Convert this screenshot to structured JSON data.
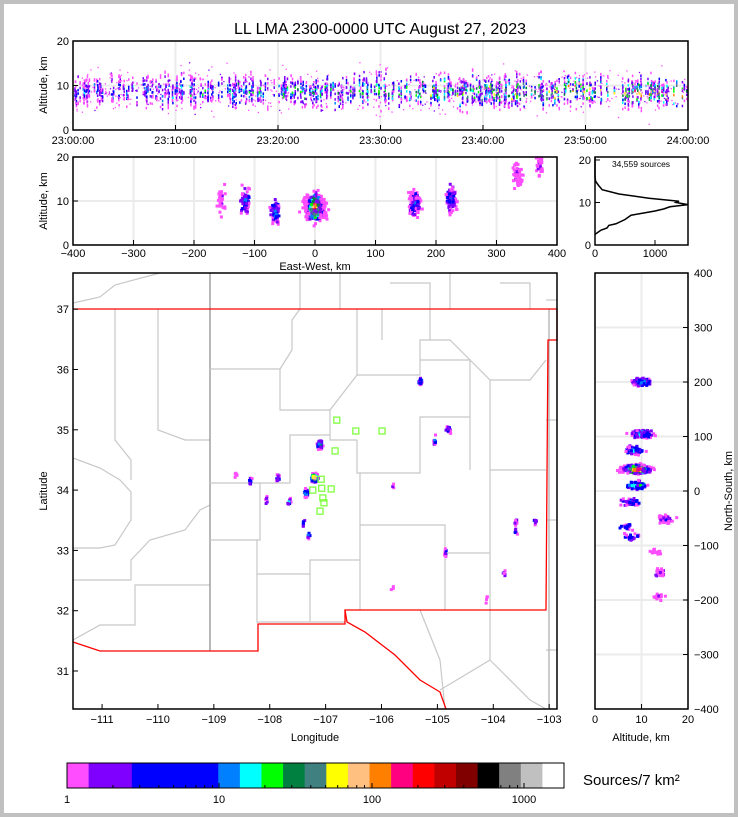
{
  "title": "LL LMA 2300-0000 UTC August 27, 2023",
  "palette": [
    "#ff4dff",
    "#7f00ff",
    "#0000ff",
    "#0000ff",
    "#0080ff",
    "#00ffff",
    "#00ff00",
    "#008040",
    "#408080",
    "#ffff00",
    "#ffc080",
    "#ff8000",
    "#ff0080",
    "#ff0000",
    "#c00000",
    "#800000",
    "#000000",
    "#808080",
    "#c0c0c0",
    "#ffffff"
  ],
  "chart_data": [
    {
      "id": "time-height",
      "type": "scatter",
      "ylabel": "Altitude, km",
      "xlim_minutes": [
        0,
        60
      ],
      "ylim": [
        0,
        20
      ],
      "xticks": [
        "23:00:00",
        "23:10:00",
        "23:20:00",
        "23:30:00",
        "23:40:00",
        "23:50:00",
        "24:00:00"
      ],
      "yticks": [
        "0",
        "10",
        "20"
      ],
      "grid": true,
      "mean_altitude_km": 9
    },
    {
      "id": "ew-height",
      "type": "scatter",
      "xlabel": "East-West, km",
      "ylabel": "Altitude, km",
      "xlim": [
        -400,
        400
      ],
      "ylim": [
        0,
        20
      ],
      "xticks": [
        "−400",
        "−300",
        "−200",
        "−100",
        "0",
        "100",
        "200",
        "300",
        "400"
      ],
      "yticks": [
        "0",
        "10",
        "20"
      ],
      "grid": true,
      "clusters": [
        {
          "x": -155,
          "y": 10,
          "n": 25,
          "intensity": 0.1
        },
        {
          "x": -115,
          "y": 10,
          "n": 80,
          "intensity": 0.35
        },
        {
          "x": -65,
          "y": 7.5,
          "n": 70,
          "intensity": 0.35
        },
        {
          "x": 0,
          "y": 8.5,
          "n": 500,
          "intensity": 1.0
        },
        {
          "x": 165,
          "y": 9.5,
          "n": 160,
          "intensity": 0.3
        },
        {
          "x": 225,
          "y": 10.5,
          "n": 120,
          "intensity": 0.3
        },
        {
          "x": 335,
          "y": 16,
          "n": 50,
          "intensity": 0.1
        },
        {
          "x": 370,
          "y": 18.5,
          "n": 30,
          "intensity": 0.1
        }
      ]
    },
    {
      "id": "altitude-histogram",
      "type": "line",
      "annotation": "34,559 sources",
      "xlim": [
        0,
        1550
      ],
      "ylim": [
        0,
        20.7
      ],
      "xticks": [
        "0",
        "1000"
      ],
      "yticks": [
        "0",
        "10",
        "20"
      ],
      "points": [
        [
          0,
          2.5
        ],
        [
          50,
          3
        ],
        [
          100,
          3.5
        ],
        [
          200,
          4
        ],
        [
          230,
          4.6
        ],
        [
          350,
          5
        ],
        [
          500,
          6
        ],
        [
          600,
          7
        ],
        [
          800,
          7.5
        ],
        [
          1000,
          8
        ],
        [
          1150,
          8.5
        ],
        [
          1250,
          9
        ],
        [
          1550,
          9.5
        ],
        [
          1350,
          10
        ],
        [
          1400,
          10.3
        ],
        [
          900,
          11
        ],
        [
          400,
          12
        ],
        [
          120,
          13
        ],
        [
          60,
          14
        ],
        [
          10,
          15
        ],
        [
          0,
          16
        ],
        [
          0,
          20.7
        ]
      ]
    },
    {
      "id": "plan-view",
      "type": "scatter",
      "xlabel": "Longitude",
      "ylabel": "Latitude",
      "xlim": [
        -111.52,
        -102.86
      ],
      "ylim": [
        30.37,
        37.6
      ],
      "xticks": [
        "−111",
        "−110",
        "−109",
        "−108",
        "−107",
        "−106",
        "−105",
        "−104",
        "−103"
      ],
      "yticks": [
        "31",
        "32",
        "33",
        "34",
        "35",
        "36",
        "37"
      ],
      "clusters": [
        {
          "x": -107.1,
          "y": 34.75,
          "n": 60,
          "intensity": 0.5
        },
        {
          "x": -107.2,
          "y": 34.2,
          "n": 150,
          "intensity": 0.9
        },
        {
          "x": -107.35,
          "y": 33.95,
          "n": 30,
          "intensity": 0.4
        },
        {
          "x": -108.35,
          "y": 34.15,
          "n": 12,
          "intensity": 0.3
        },
        {
          "x": -107.85,
          "y": 34.2,
          "n": 15,
          "intensity": 0.35
        },
        {
          "x": -108.6,
          "y": 34.25,
          "n": 6,
          "intensity": 0.1
        },
        {
          "x": -107.65,
          "y": 33.8,
          "n": 12,
          "intensity": 0.35
        },
        {
          "x": -108.05,
          "y": 33.85,
          "n": 6,
          "intensity": 0.2
        },
        {
          "x": -107.4,
          "y": 33.45,
          "n": 6,
          "intensity": 0.2
        },
        {
          "x": -107.3,
          "y": 33.25,
          "n": 8,
          "intensity": 0.3
        },
        {
          "x": -105.3,
          "y": 35.8,
          "n": 30,
          "intensity": 0.35
        },
        {
          "x": -104.8,
          "y": 35.0,
          "n": 25,
          "intensity": 0.3
        },
        {
          "x": -105.05,
          "y": 34.83,
          "n": 12,
          "intensity": 0.3
        },
        {
          "x": -104.85,
          "y": 32.95,
          "n": 8,
          "intensity": 0.25
        },
        {
          "x": -103.6,
          "y": 33.45,
          "n": 8,
          "intensity": 0.2
        },
        {
          "x": -103.25,
          "y": 33.5,
          "n": 8,
          "intensity": 0.2
        },
        {
          "x": -103.6,
          "y": 33.3,
          "n": 6,
          "intensity": 0.2
        },
        {
          "x": -103.8,
          "y": 32.6,
          "n": 6,
          "intensity": 0.2
        },
        {
          "x": -105.8,
          "y": 34.05,
          "n": 3,
          "intensity": 0.2
        },
        {
          "x": -105.8,
          "y": 32.4,
          "n": 3,
          "intensity": 0.2
        },
        {
          "x": -104.1,
          "y": 32.2,
          "n": 4,
          "intensity": 0.1
        }
      ],
      "stations": [
        [
          -106.8,
          35.16
        ],
        [
          -106.46,
          34.98
        ],
        [
          -105.99,
          34.98
        ],
        [
          -106.83,
          34.65
        ],
        [
          -107.08,
          34.18
        ],
        [
          -107.07,
          34.03
        ],
        [
          -107.23,
          34.0
        ],
        [
          -106.9,
          34.02
        ],
        [
          -107.05,
          33.87
        ],
        [
          -107.1,
          33.65
        ],
        [
          -107.03,
          33.79
        ]
      ],
      "station_color": "#80ff40",
      "boundary_color": "#ff0000"
    },
    {
      "id": "ns-height",
      "type": "scatter",
      "xlabel": "Altitude, km",
      "ylabel": "North-South, km",
      "xlim": [
        0,
        20
      ],
      "ylim": [
        -400,
        400
      ],
      "xticks": [
        "0",
        "10",
        "20"
      ],
      "yticks": [
        "−400",
        "−300",
        "−200",
        "−100",
        "0",
        "100",
        "200",
        "300",
        "400"
      ],
      "grid": true,
      "clusters": [
        {
          "x": 10,
          "y": 200,
          "n": 90,
          "intensity": 0.35
        },
        {
          "x": 10,
          "y": 105,
          "n": 120,
          "intensity": 0.45
        },
        {
          "x": 8.5,
          "y": 75,
          "n": 80,
          "intensity": 0.4
        },
        {
          "x": 9,
          "y": 40,
          "n": 300,
          "intensity": 1.0
        },
        {
          "x": 9,
          "y": 10,
          "n": 80,
          "intensity": 0.5
        },
        {
          "x": 7.5,
          "y": -20,
          "n": 40,
          "intensity": 0.35
        },
        {
          "x": 7,
          "y": -65,
          "n": 20,
          "intensity": 0.25
        },
        {
          "x": 8,
          "y": -85,
          "n": 20,
          "intensity": 0.35
        },
        {
          "x": 15.5,
          "y": -52,
          "n": 40,
          "intensity": 0.15
        },
        {
          "x": 13,
          "y": -110,
          "n": 15,
          "intensity": 0.1
        },
        {
          "x": 14,
          "y": -150,
          "n": 25,
          "intensity": 0.1
        },
        {
          "x": 14,
          "y": -195,
          "n": 15,
          "intensity": 0.1
        }
      ]
    }
  ],
  "colorbar": {
    "label": "Sources/7 km²",
    "ticks": [
      "1",
      "10",
      "100",
      "1000"
    ],
    "colors": [
      "#ff4dff",
      "#7f00ff",
      "#0000ff",
      "#0080ff",
      "#00ffff",
      "#00ff00",
      "#008040",
      "#408080",
      "#ffff00",
      "#ffc080",
      "#ff8000",
      "#ff0080",
      "#ff0000",
      "#c00000",
      "#800000",
      "#000000",
      "#808080",
      "#c0c0c0",
      "#ffffff"
    ],
    "weights": [
      0.5,
      1,
      2,
      0.5,
      0.5,
      0.5,
      0.5,
      0.5,
      0.5,
      0.5,
      0.5,
      0.5,
      0.5,
      0.5,
      0.5,
      0.5,
      0.5,
      0.5,
      0.5
    ]
  }
}
